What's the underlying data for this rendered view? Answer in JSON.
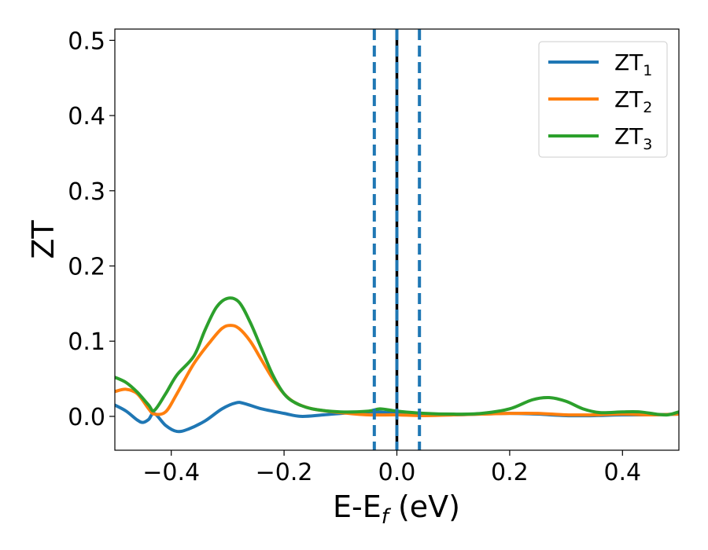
{
  "chart_data": {
    "type": "line",
    "xlabel": "E-E",
    "xlabel_sub": "f",
    "xlabel_unit": " (eV)",
    "ylabel": "ZT",
    "xlim": [
      -0.5,
      0.5
    ],
    "ylim": [
      -0.045,
      0.515
    ],
    "x_ticks": [
      -0.4,
      -0.2,
      0.0,
      0.2,
      0.4
    ],
    "x_tick_labels": [
      "−0.4",
      "−0.2",
      "0.0",
      "0.2",
      "0.4"
    ],
    "y_ticks": [
      0.0,
      0.1,
      0.2,
      0.3,
      0.4,
      0.5
    ],
    "y_tick_labels": [
      "0.0",
      "0.1",
      "0.2",
      "0.3",
      "0.4",
      "0.5"
    ],
    "grid": false,
    "legend_position": "top-right",
    "series": [
      {
        "name": "ZT",
        "sub": "1",
        "color": "#1f77b4",
        "points": [
          [
            -0.5,
            0.015
          ],
          [
            -0.48,
            0.007
          ],
          [
            -0.46,
            -0.005
          ],
          [
            -0.45,
            -0.008
          ],
          [
            -0.44,
            -0.004
          ],
          [
            -0.43,
            0.004
          ],
          [
            -0.41,
            -0.012
          ],
          [
            -0.39,
            -0.02
          ],
          [
            -0.37,
            -0.017
          ],
          [
            -0.34,
            -0.006
          ],
          [
            -0.31,
            0.01
          ],
          [
            -0.285,
            0.018
          ],
          [
            -0.27,
            0.017
          ],
          [
            -0.24,
            0.01
          ],
          [
            -0.2,
            0.004
          ],
          [
            -0.17,
            0.0
          ],
          [
            -0.13,
            0.002
          ],
          [
            -0.08,
            0.005
          ],
          [
            -0.04,
            0.006
          ],
          [
            0.0,
            0.004
          ],
          [
            0.05,
            0.002
          ],
          [
            0.1,
            0.002
          ],
          [
            0.15,
            0.003
          ],
          [
            0.2,
            0.004
          ],
          [
            0.25,
            0.003
          ],
          [
            0.3,
            0.001
          ],
          [
            0.35,
            0.001
          ],
          [
            0.4,
            0.002
          ],
          [
            0.45,
            0.002
          ],
          [
            0.5,
            0.003
          ]
        ]
      },
      {
        "name": "ZT",
        "sub": "2",
        "color": "#ff7f0e",
        "points": [
          [
            -0.5,
            0.033
          ],
          [
            -0.48,
            0.036
          ],
          [
            -0.46,
            0.03
          ],
          [
            -0.44,
            0.01
          ],
          [
            -0.43,
            0.003
          ],
          [
            -0.41,
            0.006
          ],
          [
            -0.39,
            0.03
          ],
          [
            -0.36,
            0.07
          ],
          [
            -0.33,
            0.1
          ],
          [
            -0.31,
            0.117
          ],
          [
            -0.295,
            0.121
          ],
          [
            -0.28,
            0.117
          ],
          [
            -0.26,
            0.1
          ],
          [
            -0.24,
            0.075
          ],
          [
            -0.22,
            0.05
          ],
          [
            -0.2,
            0.03
          ],
          [
            -0.18,
            0.018
          ],
          [
            -0.15,
            0.01
          ],
          [
            -0.1,
            0.005
          ],
          [
            -0.05,
            0.002
          ],
          [
            0.0,
            0.002
          ],
          [
            0.05,
            0.001
          ],
          [
            0.1,
            0.002
          ],
          [
            0.15,
            0.003
          ],
          [
            0.2,
            0.004
          ],
          [
            0.25,
            0.004
          ],
          [
            0.3,
            0.002
          ],
          [
            0.35,
            0.002
          ],
          [
            0.4,
            0.003
          ],
          [
            0.45,
            0.002
          ],
          [
            0.5,
            0.003
          ]
        ]
      },
      {
        "name": "ZT",
        "sub": "3",
        "color": "#2ca02c",
        "points": [
          [
            -0.5,
            0.052
          ],
          [
            -0.48,
            0.045
          ],
          [
            -0.46,
            0.032
          ],
          [
            -0.44,
            0.015
          ],
          [
            -0.43,
            0.008
          ],
          [
            -0.41,
            0.03
          ],
          [
            -0.39,
            0.055
          ],
          [
            -0.36,
            0.08
          ],
          [
            -0.34,
            0.115
          ],
          [
            -0.32,
            0.145
          ],
          [
            -0.3,
            0.157
          ],
          [
            -0.28,
            0.152
          ],
          [
            -0.26,
            0.125
          ],
          [
            -0.24,
            0.09
          ],
          [
            -0.22,
            0.055
          ],
          [
            -0.2,
            0.03
          ],
          [
            -0.18,
            0.018
          ],
          [
            -0.15,
            0.01
          ],
          [
            -0.1,
            0.006
          ],
          [
            -0.05,
            0.007
          ],
          [
            -0.03,
            0.01
          ],
          [
            0.0,
            0.007
          ],
          [
            0.05,
            0.004
          ],
          [
            0.1,
            0.003
          ],
          [
            0.15,
            0.004
          ],
          [
            0.2,
            0.01
          ],
          [
            0.24,
            0.022
          ],
          [
            0.27,
            0.025
          ],
          [
            0.3,
            0.02
          ],
          [
            0.33,
            0.01
          ],
          [
            0.36,
            0.005
          ],
          [
            0.4,
            0.006
          ],
          [
            0.43,
            0.006
          ],
          [
            0.46,
            0.003
          ],
          [
            0.48,
            0.002
          ],
          [
            0.5,
            0.006
          ]
        ]
      }
    ],
    "vertical_lines": [
      {
        "x": -0.04,
        "style": "dashed",
        "color": "#1f77b4"
      },
      {
        "x": 0.0,
        "style": "solid",
        "color": "#000000"
      },
      {
        "x": 0.0,
        "style": "dashed",
        "color": "#1f77b4"
      },
      {
        "x": 0.04,
        "style": "dashed",
        "color": "#1f77b4"
      }
    ]
  }
}
